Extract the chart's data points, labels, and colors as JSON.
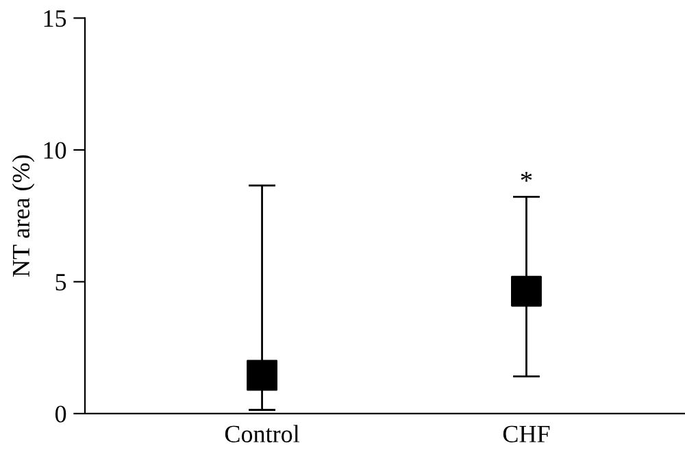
{
  "chart_data": {
    "type": "scatter",
    "ylabel": "NT area (%)",
    "categories": [
      "Control",
      "CHF"
    ],
    "series": [
      {
        "color": "#000000",
        "values": [
          1.45,
          4.64
        ],
        "errors": [
          [
            0.14,
            8.65
          ],
          [
            1.41,
            8.22
          ]
        ]
      }
    ],
    "marker": "square",
    "ylim": [
      0,
      15
    ],
    "yticks": [
      0,
      5,
      10,
      15
    ],
    "grid": false,
    "legend": false,
    "annotations": [
      "*"
    ]
  }
}
